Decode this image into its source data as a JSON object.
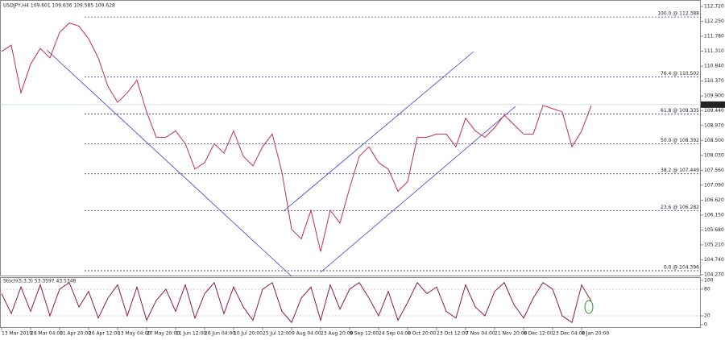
{
  "chart_data": [
    {
      "type": "line",
      "title": "USDJPY,H4  109.601 109.636 109.585 109.628",
      "categories": [
        "13 Mar 2019",
        null,
        null,
        "28 Mar 04:00",
        null,
        null,
        "11 Apr 20:00",
        null,
        null,
        "26 Apr 12:00",
        null,
        null,
        "13 May 04:00",
        null,
        null,
        "27 May 20:00",
        null,
        null,
        "11 Jun 12:00",
        null,
        null,
        "26 Jun 04:00",
        null,
        null,
        "10 Jul 20:00",
        null,
        null,
        "25 Jul 12:00",
        null,
        null,
        "9 Aug 04:00",
        null,
        null,
        "23 Aug 20:00",
        null,
        null,
        "9 Sep 12:00",
        null,
        null,
        "24 Sep 04:00",
        null,
        null,
        "8 Oct 20:00",
        null,
        null,
        "23 Oct 12:00",
        null,
        null,
        "7 Nov 04:00",
        null,
        null,
        "21 Nov 20:00",
        null,
        null,
        "6 Dec 12:00",
        null,
        null,
        "23 Dec 04:00",
        null,
        null,
        "8 Jan 20:00",
        null
      ],
      "series": [
        {
          "name": "USDJPY,H4",
          "color": "#c0304a",
          "values": [
            111.3,
            111.5,
            110.0,
            110.9,
            111.4,
            111.1,
            111.9,
            112.2,
            112.1,
            111.7,
            111.1,
            110.2,
            109.7,
            110.0,
            110.4,
            109.4,
            108.6,
            108.6,
            108.8,
            108.4,
            107.6,
            107.8,
            108.4,
            108.1,
            108.8,
            108.0,
            107.7,
            108.3,
            108.7,
            107.5,
            105.7,
            105.4,
            106.3,
            105.0,
            106.3,
            105.9,
            107.0,
            108.0,
            108.3,
            107.8,
            107.6,
            106.9,
            107.2,
            108.6,
            108.6,
            108.7,
            108.7,
            108.3,
            109.2,
            108.8,
            108.6,
            108.9,
            109.3,
            109.0,
            108.7,
            108.7,
            109.6,
            109.5,
            109.4,
            108.3,
            108.8,
            109.6
          ]
        }
      ],
      "ylim": [
        104.27,
        112.72
      ],
      "yticks": [
        {
          "value": 112.72,
          "label": "112.720"
        },
        {
          "value": 112.25,
          "label": "112.250"
        },
        {
          "value": 111.78,
          "label": "111.780"
        },
        {
          "value": 111.31,
          "label": "111.310"
        },
        {
          "value": 110.84,
          "label": "110.840"
        },
        {
          "value": 110.37,
          "label": "110.370"
        },
        {
          "value": 109.9,
          "label": "109.900"
        },
        {
          "value": 109.44,
          "label": "109.440"
        },
        {
          "value": 108.97,
          "label": "108.970"
        },
        {
          "value": 108.5,
          "label": "108.500"
        },
        {
          "value": 108.03,
          "label": "108.030"
        },
        {
          "value": 107.56,
          "label": "107.560"
        },
        {
          "value": 107.09,
          "label": "107.090"
        },
        {
          "value": 106.62,
          "label": "106.620"
        },
        {
          "value": 106.15,
          "label": "106.150"
        },
        {
          "value": 105.68,
          "label": "105.680"
        },
        {
          "value": 105.21,
          "label": "105.210"
        },
        {
          "value": 104.74,
          "label": "104.740"
        },
        {
          "value": 104.27,
          "label": "104.270"
        }
      ],
      "current_price": {
        "value": 109.628,
        "label": "109.628"
      },
      "fib_levels": [
        {
          "label": "100.0 @ 112.388",
          "price": 112.388
        },
        {
          "label": "76.4 @ 110.502",
          "price": 110.502
        },
        {
          "label": "61.8 @ 109.335",
          "price": 109.335
        },
        {
          "label": "50.0 @ 108.392",
          "price": 108.392
        },
        {
          "label": "38.2 @ 107.449",
          "price": 107.449
        },
        {
          "label": "23.6 @ 106.282",
          "price": 106.282
        },
        {
          "label": "0.0 @ 104.396",
          "price": 104.396
        }
      ],
      "fib_color": "#1a1aa0"
    },
    {
      "type": "line",
      "title": "Stoch(5,3,3) 53.3597 43.5348",
      "series": [
        {
          "name": "Stoch(5,3,3)",
          "color": "#8b1a4a",
          "values": [
            70,
            25,
            85,
            30,
            90,
            20,
            80,
            95,
            40,
            75,
            15,
            60,
            90,
            20,
            85,
            10,
            55,
            80,
            30,
            90,
            15,
            70,
            95,
            25,
            85,
            40,
            10,
            80,
            95,
            30,
            5,
            60,
            85,
            10,
            90,
            35,
            80,
            95,
            60,
            20,
            75,
            10,
            50,
            95,
            70,
            85,
            30,
            15,
            90,
            40,
            20,
            75,
            95,
            45,
            15,
            60,
            95,
            80,
            20,
            5,
            90,
            53
          ]
        }
      ],
      "ylim": [
        0,
        100
      ],
      "yticks": [
        100,
        80,
        20,
        0
      ],
      "levels": [
        80,
        20
      ]
    }
  ]
}
